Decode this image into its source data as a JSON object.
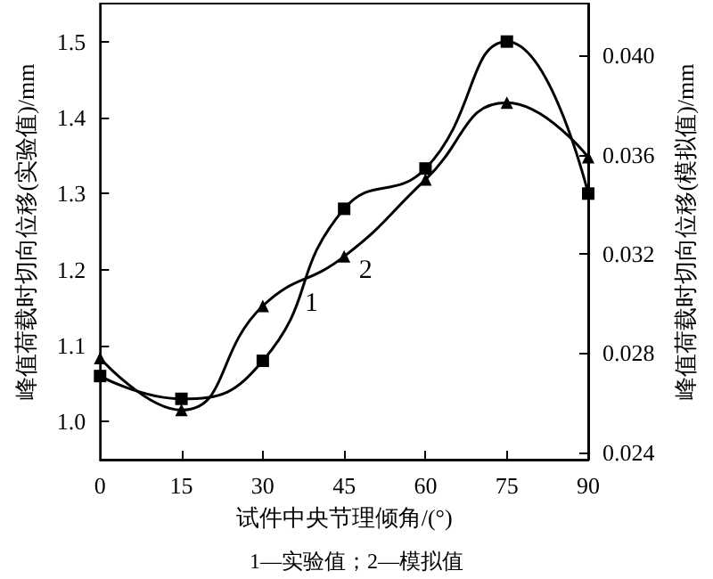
{
  "chart_data": {
    "type": "line",
    "xlabel": "试件中央节理倾角/(°)",
    "ylabel": "峰值荷载时切向位移(实验值)/mm",
    "y2label": "峰值荷载时切向位移(模拟值)/mm",
    "x": [
      0,
      15,
      30,
      45,
      60,
      75,
      90
    ],
    "series": [
      {
        "name": "1",
        "color": "#000000",
        "marker": "square",
        "values": [
          1.06,
          1.03,
          1.08,
          1.28,
          1.333,
          1.5,
          1.3
        ]
      },
      {
        "name": "2",
        "color": "#000000",
        "marker": "triangle",
        "axis": "y2",
        "values": [
          0.0278,
          0.0257,
          0.0299,
          0.0319,
          0.035,
          0.0381,
          0.0359
        ]
      }
    ],
    "xlim": [
      0,
      90
    ],
    "xticks": [
      0,
      15,
      30,
      45,
      60,
      75,
      90
    ],
    "ylim": [
      0.95,
      1.55
    ],
    "yticks": [
      {
        "value": 1,
        "label": "1.0"
      },
      1.1,
      1.2,
      1.3,
      1.4,
      1.5
    ],
    "y2lim": [
      0.0237,
      0.0421
    ],
    "y2ticks": [
      0.024,
      0.028,
      0.032,
      0.036,
      {
        "value": 0.04,
        "label": "0.040"
      }
    ],
    "grid": false,
    "legend": false,
    "line_style": "solid",
    "annotations": [
      "1—实验值；2—模拟值"
    ]
  }
}
